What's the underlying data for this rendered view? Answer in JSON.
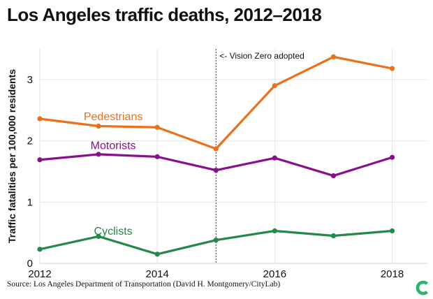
{
  "title": "Los Angeles traffic deaths, 2012–2018",
  "source": "Source: Los Angeles Department of Transportation (David H. Montgomery/CityLab)",
  "logo_icon": "citylab-logo-icon",
  "colors": {
    "pedestrians": "#ec6f1a",
    "motorists": "#8a0f8c",
    "cyclists": "#23894a",
    "logo": "#2ab56b",
    "grid": "#e6e6e6",
    "text": "#111111"
  },
  "chart_data": {
    "type": "line",
    "title": "Los Angeles traffic deaths, 2012–2018",
    "xlabel": "",
    "ylabel": "Traffic fatalities per 100,000 residents",
    "x": [
      2012,
      2013,
      2014,
      2015,
      2016,
      2017,
      2018
    ],
    "xticks": [
      "2012",
      "2014",
      "2016",
      "2018"
    ],
    "yticks": [
      "0",
      "1",
      "2",
      "3"
    ],
    "ylim": [
      0,
      3.5
    ],
    "grid": true,
    "series": [
      {
        "name": "Pedestrians",
        "values": [
          2.36,
          2.24,
          2.22,
          1.87,
          2.9,
          3.37,
          3.18
        ]
      },
      {
        "name": "Motorists",
        "values": [
          1.69,
          1.78,
          1.74,
          1.52,
          1.72,
          1.43,
          1.73
        ]
      },
      {
        "name": "Cyclists",
        "values": [
          0.23,
          0.44,
          0.15,
          0.38,
          0.53,
          0.45,
          0.53
        ]
      }
    ],
    "annotation": {
      "x": 2015,
      "text": "<- Vision Zero adopted"
    }
  }
}
